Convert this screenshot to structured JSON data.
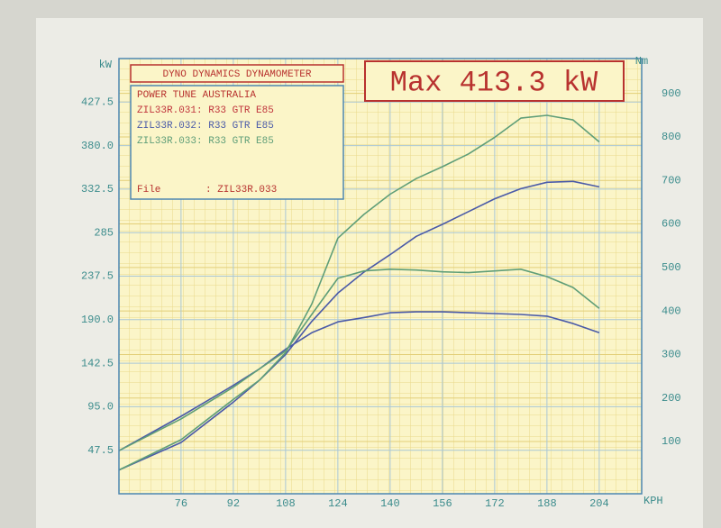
{
  "chart_data": {
    "type": "line",
    "title": "DYNO DYNAMICS DYNAMOMETER",
    "annotation": "Max 413.3 kW",
    "legend_title": "POWER TUNE AUSTRALIA",
    "file_label": "File",
    "file_value": ": ZIL33R.033",
    "y_label": "kW",
    "y2_label": "Nm",
    "x_label": "KPH",
    "x": [
      57,
      76,
      92,
      100,
      108,
      116,
      124,
      132,
      140,
      148,
      156,
      164,
      172,
      180,
      188,
      196,
      204
    ],
    "xlim": [
      57,
      217
    ],
    "xticks": [
      76,
      92,
      108,
      124,
      140,
      156,
      172,
      188,
      204
    ],
    "ylim": [
      0,
      475
    ],
    "yticks": [
      47.5,
      {
        "value": 95,
        "label": "95.0"
      },
      142.5,
      {
        "value": 190,
        "label": "190.0"
      },
      237.5,
      285,
      332.5,
      {
        "value": 380,
        "label": "380.0"
      },
      427.5
    ],
    "y2lim": [
      -20,
      980
    ],
    "y2ticks": [
      100,
      200,
      300,
      400,
      500,
      600,
      700,
      800,
      900
    ],
    "grid": true,
    "series": [
      {
        "name": "ZIL33R.031: R33 GTR E85",
        "color": "#c0343c",
        "values": [
          null,
          null,
          null,
          null,
          null,
          null,
          null,
          null,
          null,
          null,
          null,
          null,
          null,
          null,
          null,
          null,
          null
        ],
        "torque": [
          null,
          null,
          null,
          null,
          null,
          null,
          null,
          null,
          null,
          null,
          null,
          null,
          null,
          null,
          null,
          null,
          null
        ]
      },
      {
        "name": "ZIL33R.032: R33 GTR E85",
        "color": "#4a5aa8",
        "values": [
          26,
          56,
          100,
          124,
          152,
          188,
          219,
          242,
          261,
          281,
          294,
          308,
          322,
          333,
          340,
          341,
          335
        ],
        "torque": [
          79,
          158,
          229,
          267,
          312,
          350,
          375,
          385,
          396,
          398,
          398,
          396,
          394,
          392,
          388,
          371,
          350
        ]
      },
      {
        "name": "ZIL33R.033: R33 GTR E85",
        "color": "#5f9e78",
        "values": [
          26,
          59,
          103,
          124,
          154,
          207,
          279,
          305,
          327,
          344,
          357,
          371,
          389,
          410,
          413,
          408,
          384
        ],
        "torque": [
          79,
          152,
          225,
          267,
          308,
          392,
          475,
          492,
          496,
          494,
          490,
          488,
          492,
          496,
          479,
          454,
          406
        ]
      }
    ]
  }
}
